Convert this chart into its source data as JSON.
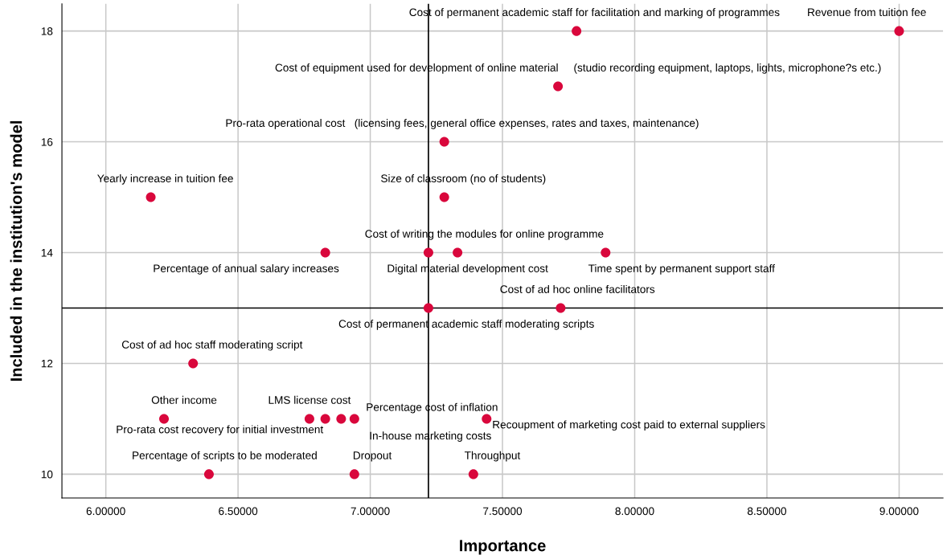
{
  "chart_data": {
    "type": "scatter",
    "xlabel": "Importance",
    "ylabel": "Included in the institution's model",
    "xlim": [
      5.834,
      9.166
    ],
    "ylim": [
      9.57,
      18.49
    ],
    "xticks": [
      {
        "value": 6.0,
        "label": "6.00000"
      },
      {
        "value": 6.5,
        "label": "6.50000"
      },
      {
        "value": 7.0,
        "label": "7.00000"
      },
      {
        "value": 7.5,
        "label": "7.50000"
      },
      {
        "value": 8.0,
        "label": "8.00000"
      },
      {
        "value": 8.5,
        "label": "8.50000"
      },
      {
        "value": 9.0,
        "label": "9.00000"
      }
    ],
    "yticks": [
      10,
      12,
      14,
      16,
      18
    ],
    "grid": true,
    "marker": "circle",
    "series": [
      {
        "color": "#d9073c",
        "x": [
          7.78,
          9.0,
          7.71,
          7.28,
          6.17,
          7.28,
          6.83,
          7.22,
          7.33,
          7.89,
          7.72,
          7.22,
          6.33,
          6.22,
          6.77,
          6.83,
          6.94,
          6.89,
          7.44,
          6.39,
          6.94,
          7.39
        ],
        "values": [
          18,
          18,
          17,
          16,
          15,
          15,
          14,
          14,
          14,
          14,
          13,
          13,
          12,
          11,
          11,
          11,
          11,
          11,
          11,
          10,
          10,
          10
        ]
      }
    ],
    "ref_lines": [
      {
        "axis": "x",
        "value": 7.22,
        "color": "#000000"
      },
      {
        "axis": "y",
        "value": 13,
        "color": "#000000"
      }
    ],
    "annotations": [
      {
        "text": "Cost of permanent academic staff for facilitation and marking of programmes",
        "x": 7.78,
        "y": 18
      },
      {
        "text": "Revenue from tuition fee",
        "x": 9.0,
        "y": 18
      },
      {
        "text": "Cost of equipment used for development of online material     (studio recording equipment, laptops, lights, microphone?s etc.)",
        "x": 7.71,
        "y": 17
      },
      {
        "text": "Pro-rata operational cost   (licensing fees, general office expenses, rates and taxes, maintenance)",
        "x": 7.28,
        "y": 16
      },
      {
        "text": "Yearly increase in tuition fee",
        "x": 6.17,
        "y": 15
      },
      {
        "text": "Size of classroom (no of students)",
        "x": 7.28,
        "y": 15
      },
      {
        "text": "Percentage of annual salary increases",
        "x": 6.83,
        "y": 14
      },
      {
        "text": "Cost of writing the modules for online programme",
        "x": 7.22,
        "y": 14
      },
      {
        "text": "Digital material development cost",
        "x": 7.33,
        "y": 14
      },
      {
        "text": "Time spent by permanent support staff",
        "x": 7.89,
        "y": 14
      },
      {
        "text": "Cost of ad hoc online facilitators",
        "x": 7.72,
        "y": 13
      },
      {
        "text": "Cost of permanent academic staff moderating scripts",
        "x": 7.22,
        "y": 13
      },
      {
        "text": "Cost of ad hoc staff moderating script",
        "x": 6.33,
        "y": 12
      },
      {
        "text": "Other income",
        "x": 6.22,
        "y": 11
      },
      {
        "text": "LMS license cost",
        "x": 6.77,
        "y": 11
      },
      "Pro-rata cost recovery for initial investment",
      {
        "text": "In-house marketing costs",
        "x": 6.94,
        "y": 11
      },
      "Percentage cost of inflation",
      {
        "text": "Recoupment of marketing cost paid to external suppliers",
        "x": 7.44,
        "y": 11
      },
      {
        "text": "Percentage of scripts to be moderated",
        "x": 6.39,
        "y": 10
      },
      {
        "text": "Dropout",
        "x": 6.94,
        "y": 10
      },
      {
        "text": "Throughput",
        "x": 7.39,
        "y": 10
      }
    ]
  }
}
